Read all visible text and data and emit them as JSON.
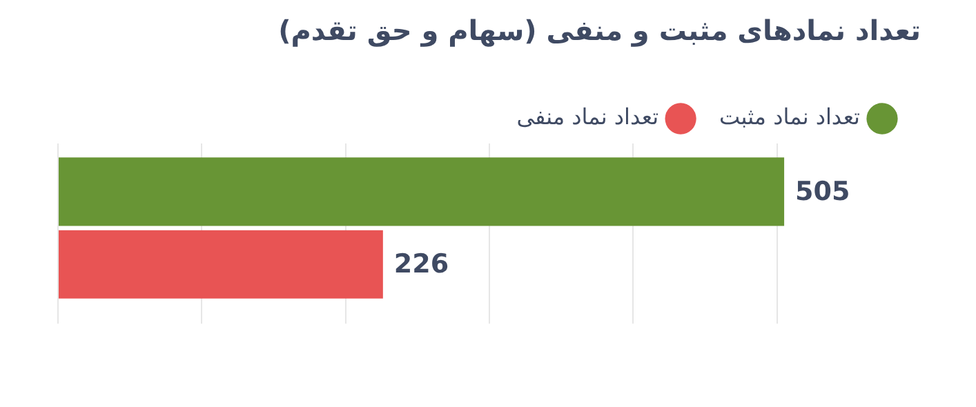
{
  "chart_data": {
    "type": "bar",
    "orientation": "horizontal",
    "title": "تعداد نمادهای مثبت و منفی (سهام و حق تقدم)",
    "categories": [
      null
    ],
    "series": [
      {
        "name": "تعداد نماد مثبت",
        "color": "#689535",
        "values": [
          505
        ]
      },
      {
        "name": "تعداد نماد منفی",
        "color": "#e85454",
        "values": [
          226
        ]
      }
    ],
    "xticks": [
      {
        "value": 0,
        "label": null
      },
      {
        "value": 100,
        "label": null
      },
      {
        "value": 200,
        "label": null
      },
      {
        "value": 300,
        "label": null
      },
      {
        "value": 400,
        "label": null
      },
      {
        "value": 500,
        "label": null
      }
    ],
    "grid": "x",
    "legend": "top right",
    "data_labels": true
  }
}
